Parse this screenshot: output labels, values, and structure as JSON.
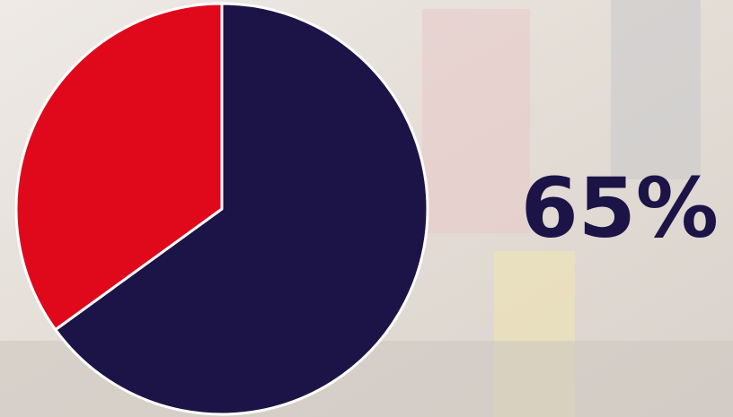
{
  "chart_data": {
    "type": "pie",
    "values": [
      65,
      35
    ],
    "value_labels": [
      "65%",
      null
    ],
    "colors": [
      "#1c1446",
      "#e0091b"
    ]
  }
}
